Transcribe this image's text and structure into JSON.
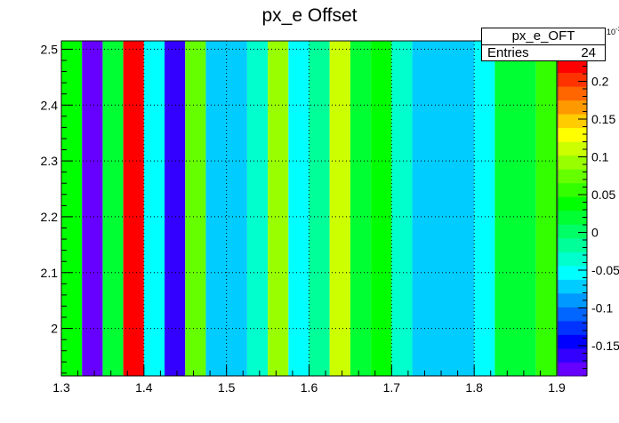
{
  "chart_data": {
    "type": "heatmap",
    "title": "px_e Offset",
    "stats": {
      "name": "px_e_OFT",
      "entries_label": "Entries",
      "entries_value": "24"
    },
    "x_range": [
      1.3,
      1.9
    ],
    "y_range": [
      1.915,
      2.515
    ],
    "x_ticks": [
      "1.3",
      "1.4",
      "1.5",
      "1.6",
      "1.7",
      "1.8",
      "1.9"
    ],
    "y_ticks": [
      "2",
      "2.1",
      "2.2",
      "2.3",
      "2.4",
      "2.5"
    ],
    "z_range": [
      -0.19,
      0.23
    ],
    "z_exponent": "-3",
    "z_ticks": [
      "0.2",
      "0.15",
      "0.1",
      "0.05",
      "0",
      "-0.05",
      "-0.1",
      "-0.15"
    ],
    "grid": true,
    "palette": [
      "#6600ff",
      "#3300ff",
      "#0000ff",
      "#0033ff",
      "#0066ff",
      "#0099ff",
      "#00ccff",
      "#00ffff",
      "#00ffcc",
      "#00ff99",
      "#00ff66",
      "#00ff33",
      "#00ff00",
      "#33ff00",
      "#66ff00",
      "#99ff00",
      "#ccff00",
      "#ffff00",
      "#ffcc00",
      "#ff9900",
      "#ff6600",
      "#ff3300",
      "#ff0000"
    ],
    "columns": [
      {
        "x0": 1.3,
        "x1": 1.325,
        "color": "#00ff00"
      },
      {
        "x0": 1.325,
        "x1": 1.35,
        "color": "#6600ff"
      },
      {
        "x0": 1.35,
        "x1": 1.375,
        "color": "#00ff33"
      },
      {
        "x0": 1.375,
        "x1": 1.4,
        "color": "#ff0000"
      },
      {
        "x0": 1.4,
        "x1": 1.425,
        "color": "#00ffff"
      },
      {
        "x0": 1.425,
        "x1": 1.45,
        "color": "#3300ff"
      },
      {
        "x0": 1.45,
        "x1": 1.475,
        "color": "#66ff00"
      },
      {
        "x0": 1.475,
        "x1": 1.525,
        "color": "#00ccff"
      },
      {
        "x0": 1.525,
        "x1": 1.55,
        "color": "#00ffcc"
      },
      {
        "x0": 1.55,
        "x1": 1.575,
        "color": "#99ff00"
      },
      {
        "x0": 1.575,
        "x1": 1.6,
        "color": "#00ffff"
      },
      {
        "x0": 1.6,
        "x1": 1.625,
        "color": "#00ff99"
      },
      {
        "x0": 1.625,
        "x1": 1.65,
        "color": "#ccff00"
      },
      {
        "x0": 1.65,
        "x1": 1.675,
        "color": "#00ff33"
      },
      {
        "x0": 1.675,
        "x1": 1.7,
        "color": "#00ff00"
      },
      {
        "x0": 1.7,
        "x1": 1.725,
        "color": "#00ffcc"
      },
      {
        "x0": 1.725,
        "x1": 1.8,
        "color": "#00ccff"
      },
      {
        "x0": 1.8,
        "x1": 1.825,
        "color": "#00ffff"
      },
      {
        "x0": 1.825,
        "x1": 1.875,
        "color": "#00ff33"
      },
      {
        "x0": 1.875,
        "x1": 1.9,
        "color": "#33ff00"
      }
    ]
  }
}
